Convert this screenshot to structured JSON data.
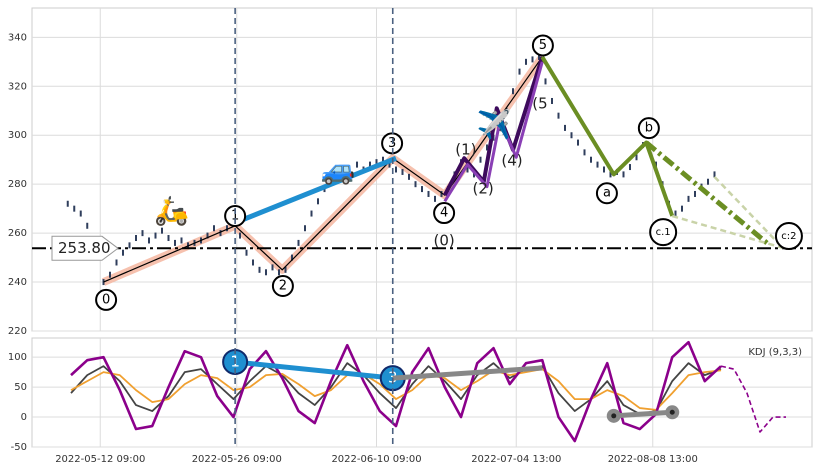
{
  "chart_data": [
    {
      "type": "candle",
      "xlim": [
        0,
        240
      ],
      "ylim": [
        220,
        352
      ],
      "yticks": [
        220,
        240,
        260,
        280,
        300,
        320,
        340
      ],
      "xticks": [
        {
          "value": 21,
          "label": "2022-05-12 09:00"
        },
        {
          "value": 63,
          "label": "2022-05-26 09:00"
        },
        {
          "value": 106,
          "label": "2022-06-10 09:00"
        },
        {
          "value": 149,
          "label": "2022-07-04 13:00"
        },
        {
          "value": 191,
          "label": "2022-08-08 13:00"
        }
      ],
      "grid": true,
      "color": "#2f3e5c",
      "x": [
        11,
        13,
        15,
        17,
        22,
        24,
        26,
        28,
        30,
        32,
        34,
        36,
        38,
        40,
        42,
        44,
        46,
        48,
        50,
        52,
        54,
        56,
        58,
        60,
        62,
        64,
        66,
        68,
        70,
        72,
        74,
        76,
        78,
        80,
        82,
        84,
        86,
        88,
        90,
        92,
        94,
        96,
        98,
        100,
        102,
        104,
        106,
        108,
        110,
        112,
        114,
        116,
        118,
        120,
        122,
        124,
        126,
        128,
        130,
        132,
        134,
        136,
        138,
        140,
        142,
        144,
        146,
        148,
        150,
        152,
        154,
        156,
        158,
        160,
        162,
        164,
        166,
        168,
        170,
        172,
        174,
        176,
        178,
        180,
        182,
        184,
        186,
        188,
        190,
        192,
        194,
        196,
        198,
        200,
        202,
        204,
        206,
        208,
        210
      ],
      "values": [
        272,
        270,
        268,
        263,
        240,
        243,
        248,
        252,
        255,
        258,
        260,
        257,
        259,
        261,
        258,
        256,
        257,
        255,
        256,
        257,
        259,
        262,
        260,
        262,
        264,
        259,
        252,
        248,
        245,
        244,
        246,
        244,
        245,
        250,
        256,
        262,
        268,
        273,
        278,
        281,
        284,
        286,
        284,
        288,
        286,
        288,
        289,
        290,
        288,
        286,
        285,
        283,
        280,
        278,
        276,
        274,
        276,
        278,
        284,
        289,
        286,
        284,
        290,
        295,
        299,
        303,
        310,
        318,
        326,
        330,
        331,
        332,
        322,
        314,
        308,
        303,
        300,
        297,
        293,
        290,
        288,
        286,
        284,
        285,
        284,
        287,
        291,
        296,
        294,
        288,
        280,
        272,
        268,
        270,
        274,
        276,
        279,
        281,
        284
      ],
      "hline": {
        "value": 253.8,
        "label": "253.80"
      },
      "vlines": [
        62.5,
        111
      ],
      "waves": [
        {
          "color": "#f4b6a0",
          "width": 8,
          "style": "solid",
          "x": [
            22,
            62.5,
            77,
            111,
            127,
            157
          ],
          "y": [
            240,
            263,
            245,
            290.6,
            275.5,
            332
          ]
        },
        {
          "color": "#000000",
          "width": 1.2,
          "style": "solid",
          "x": [
            22,
            62.5,
            77,
            111,
            127,
            157
          ],
          "y": [
            240,
            263,
            245,
            290.6,
            275.5,
            332
          ]
        },
        {
          "color": "#1f8fd0",
          "width": 5,
          "style": "solid",
          "x": [
            63,
            112
          ],
          "y": [
            264.5,
            290.6
          ]
        },
        {
          "color": "#3d0a5c",
          "width": 4,
          "style": "solid",
          "x": [
            127,
            133,
            139,
            143,
            148,
            157
          ],
          "y": [
            275.5,
            290.6,
            281,
            311,
            294,
            332
          ]
        },
        {
          "color": "#8a3fb5",
          "width": 3,
          "style": "solid",
          "x": [
            127,
            134,
            140,
            144,
            149,
            157
          ],
          "y": [
            273,
            288,
            279,
            306,
            291,
            330
          ]
        },
        {
          "color": "#6b8e23",
          "width": 4,
          "style": "solid",
          "x": [
            157,
            179,
            189,
            197
          ],
          "y": [
            332,
            284,
            297,
            267
          ]
        },
        {
          "color": "#6b8e23",
          "width": 5,
          "style": "dashdot",
          "x": [
            189,
            227
          ],
          "y": [
            297,
            255
          ]
        },
        {
          "color": "#c9d3a8",
          "width": 2.5,
          "style": "dashed",
          "x": [
            197,
            231
          ],
          "y": [
            267,
            254
          ]
        },
        {
          "color": "#c9d3a8",
          "width": 2.5,
          "style": "dashed",
          "x": [
            210,
            231
          ],
          "y": [
            283,
            254
          ]
        }
      ],
      "circle_labels": [
        {
          "text": "0",
          "x": 22.8,
          "y": 232.7
        },
        {
          "text": "1",
          "x": 62.5,
          "y": 267
        },
        {
          "text": "2",
          "x": 77.2,
          "y": 238.4
        },
        {
          "text": "3",
          "x": 110.8,
          "y": 296.7
        },
        {
          "text": "4",
          "x": 126.8,
          "y": 268.2
        },
        {
          "text": "5",
          "x": 157.2,
          "y": 336.7
        },
        {
          "text": "a",
          "x": 176.9,
          "y": 276.3
        },
        {
          "text": "b",
          "x": 189.8,
          "y": 302.9
        },
        {
          "text": "c.1",
          "x": 194.2,
          "y": 260.4
        },
        {
          "text": "c:2",
          "x": 232.9,
          "y": 258.8
        }
      ],
      "text_labels": [
        {
          "text": "(1)",
          "x": 133.5,
          "y": 293.9
        },
        {
          "text": "(2)",
          "x": 138.8,
          "y": 278
        },
        {
          "text": "(4)",
          "x": 147.7,
          "y": 289.4
        },
        {
          "text": "(5",
          "x": 156.3,
          "y": 312.7
        },
        {
          "text": "(0)",
          "x": 126.8,
          "y": 256.7
        }
      ],
      "icons": [
        {
          "text": "🛵",
          "x": 43,
          "y": 268.6
        },
        {
          "text": "🚙",
          "x": 94.2,
          "y": 285.3
        },
        {
          "text": "✈️",
          "x": 142.2,
          "y": 303.7
        }
      ]
    },
    {
      "type": "line",
      "title": "KDJ (9,3,3)",
      "xlim": [
        0,
        240
      ],
      "ylim": [
        -50,
        132
      ],
      "yticks": [
        -50,
        0,
        50,
        100
      ],
      "grid": true,
      "x": [
        12,
        17,
        22,
        27,
        32,
        37,
        42,
        47,
        52,
        57,
        62,
        67,
        72,
        77,
        82,
        87,
        92,
        97,
        102,
        107,
        112,
        117,
        122,
        127,
        132,
        137,
        142,
        147,
        152,
        157,
        162,
        167,
        172,
        177,
        182,
        187,
        192,
        197,
        202,
        207,
        212
      ],
      "series": [
        {
          "color": "#444444",
          "values": [
            40,
            70,
            85,
            60,
            20,
            10,
            35,
            75,
            80,
            55,
            30,
            60,
            85,
            70,
            40,
            20,
            50,
            90,
            70,
            40,
            15,
            55,
            85,
            60,
            30,
            70,
            90,
            65,
            80,
            85,
            40,
            10,
            30,
            60,
            20,
            5,
            10,
            60,
            90,
            70,
            80
          ]
        },
        {
          "color": "#f0a030",
          "values": [
            45,
            60,
            75,
            70,
            45,
            25,
            30,
            55,
            70,
            65,
            45,
            50,
            70,
            72,
            55,
            35,
            45,
            70,
            72,
            55,
            30,
            45,
            70,
            65,
            45,
            60,
            78,
            70,
            75,
            80,
            60,
            30,
            30,
            45,
            35,
            15,
            12,
            40,
            70,
            75,
            78
          ]
        },
        {
          "color": "#8b008b",
          "values": [
            70,
            95,
            100,
            45,
            -20,
            -15,
            50,
            110,
            100,
            35,
            0,
            80,
            110,
            65,
            10,
            -10,
            60,
            120,
            60,
            10,
            -15,
            75,
            115,
            50,
            0,
            90,
            115,
            55,
            90,
            95,
            0,
            -40,
            30,
            90,
            -10,
            -20,
            5,
            100,
            125,
            60,
            85
          ]
        }
      ],
      "projection": {
        "color": "#8b008b",
        "x": [
          212,
          216,
          220,
          224,
          228,
          232
        ],
        "values": [
          85,
          80,
          40,
          -25,
          0,
          0
        ]
      },
      "marks": [
        {
          "color": "#1f8fd0",
          "x": [
            62.5,
            111
          ],
          "y": [
            92,
            65
          ],
          "labels": [
            "1",
            "3"
          ]
        },
        {
          "color": "#888888",
          "x": [
            111,
            157
          ],
          "y": [
            65,
            82
          ]
        },
        {
          "color": "#888888",
          "x": [
            179,
            197
          ],
          "y": [
            2,
            8
          ],
          "dots": true
        }
      ]
    }
  ]
}
